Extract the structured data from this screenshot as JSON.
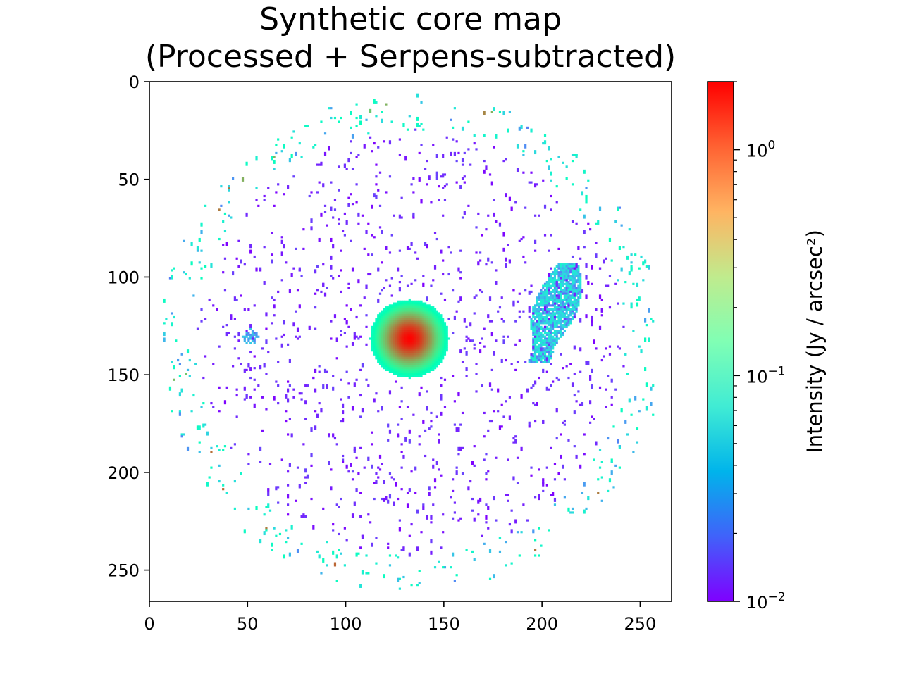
{
  "chart_data": {
    "type": "heatmap",
    "title": "Synthetic core map",
    "subtitle": "(Processed + Serpens-subtracted)",
    "xlabel": "",
    "ylabel": "",
    "xlim": [
      0,
      266
    ],
    "ylim": [
      266,
      0
    ],
    "x_ticks": [
      "0",
      "50",
      "100",
      "150",
      "200",
      "250"
    ],
    "y_ticks": [
      "0",
      "50",
      "100",
      "150",
      "200",
      "250"
    ],
    "x_tick_values": [
      0,
      50,
      100,
      150,
      200,
      250
    ],
    "y_tick_values": [
      0,
      50,
      100,
      150,
      200,
      250
    ],
    "colormap": "rainbow",
    "colorbar": {
      "label": "Intensity (Jy / arcsec²)",
      "scale": "log",
      "range": [
        0.01,
        2.0
      ],
      "ticks": [
        {
          "value": 0.01,
          "base": "10",
          "exp": "−2"
        },
        {
          "value": 0.1,
          "base": "10",
          "exp": "−1"
        },
        {
          "value": 1,
          "base": "10",
          "exp": "0"
        }
      ]
    },
    "mask_circle": {
      "center": [
        133,
        133
      ],
      "radius": 128
    },
    "features": [
      {
        "name": "central core",
        "center": [
          132,
          131
        ],
        "radius": 20,
        "peak": 2.0,
        "edge": 0.1
      },
      {
        "name": "eastern clump",
        "x_range": [
          193,
          220
        ],
        "y_range": [
          93,
          143
        ],
        "typical": 0.04
      },
      {
        "name": "western clump",
        "center": [
          51,
          130
        ],
        "typical": 0.03
      }
    ],
    "background": {
      "typical": 0.01,
      "edge_typical": 0.08
    }
  },
  "colors": {
    "low": "#7f00ff",
    "high": "#ff0000",
    "axes": "#000000",
    "background": "#ffffff"
  }
}
